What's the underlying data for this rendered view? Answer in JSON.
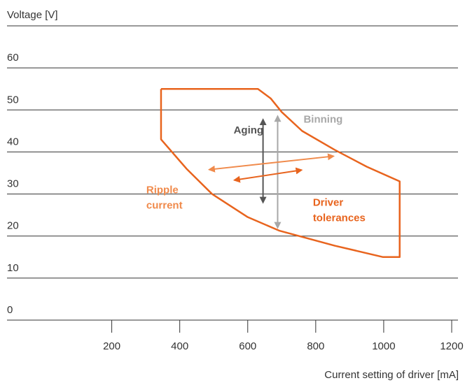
{
  "chart_data": {
    "type": "envelope",
    "ylabel": "Voltage [V]",
    "xlabel": "Current setting of driver [mA]",
    "xlim": [
      0,
      1200
    ],
    "xticks": [
      200,
      400,
      600,
      800,
      1000,
      1200
    ],
    "ylim": [
      0,
      70
    ],
    "yticks": [
      0,
      10,
      20,
      30,
      40,
      50,
      60
    ],
    "grid": true,
    "series": [
      {
        "color": "#e8641e",
        "x": [
          345,
          630,
          668,
          700,
          760,
          856,
          950,
          1047,
          1047,
          998,
          856,
          692,
          600,
          495,
          420,
          345,
          345
        ],
        "values": [
          55,
          55,
          52.7,
          49.5,
          45,
          40.5,
          36.5,
          33,
          15,
          15,
          17.7,
          21.3,
          24.5,
          30,
          36,
          43,
          55
        ]
      }
    ],
    "annotations": [
      {
        "text": [
          "Aging"
        ],
        "color": "#555555",
        "x": [
          645,
          645
        ],
        "y": [
          47.7,
          28
        ]
      },
      {
        "text": [
          "Binning"
        ],
        "color": "#a8a8a8",
        "x": [
          688,
          688
        ],
        "y": [
          48.5,
          22
        ]
      },
      {
        "text": [
          "Ripple",
          "current"
        ],
        "color": "#f08a4b",
        "x": [
          487,
          852
        ],
        "y": [
          35.8,
          39
        ]
      },
      {
        "text": [
          "Driver",
          "tolerances"
        ],
        "color": "#e8641e",
        "x": [
          561,
          758
        ],
        "y": [
          33.3,
          35.7
        ]
      }
    ]
  }
}
